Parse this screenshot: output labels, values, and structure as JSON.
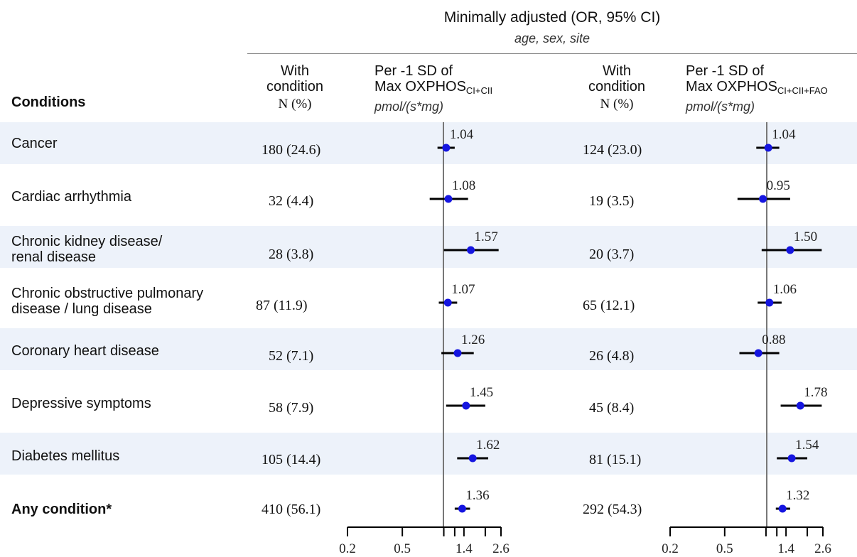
{
  "header": {
    "title": "Minimally adjusted (OR, 95% CI)",
    "subtitle": "age, sex, site",
    "conditions_label": "Conditions",
    "with_condition_line1": "With",
    "with_condition_line2": "condition",
    "n_pct_label": "N (%)",
    "per_sd_line1": "Per -1 SD of",
    "max_oxphos": "Max OXPHOS",
    "sub_left": "CI+CII",
    "sub_right": "CI+CII+FAO",
    "unit": "pmol/(s*mg)"
  },
  "colors": {
    "band": "#edf2fa",
    "point": "#1515e0",
    "ci_line": "#000000",
    "ref_line": "#777777"
  },
  "conditions": [
    {
      "label_lines": [
        "Cancer"
      ],
      "bold": false,
      "n_left": "180 (24.6)",
      "n_right": "124 (23.0)",
      "band": true
    },
    {
      "label_lines": [
        "Cardiac arrhythmia"
      ],
      "bold": false,
      "n_left": "32 (4.4)",
      "n_right": "19 (3.5)",
      "band": false
    },
    {
      "label_lines": [
        "Chronic kidney disease/",
        "renal disease"
      ],
      "bold": false,
      "n_left": "28 (3.8)",
      "n_right": "20 (3.7)",
      "band": true
    },
    {
      "label_lines": [
        "Chronic obstructive pulmonary",
        "disease / lung disease"
      ],
      "bold": false,
      "n_left": "87 (11.9)",
      "n_right": "65 (12.1)",
      "band": false
    },
    {
      "label_lines": [
        "Coronary heart disease"
      ],
      "bold": false,
      "n_left": "52 (7.1)",
      "n_right": "26 (4.8)",
      "band": true
    },
    {
      "label_lines": [
        "Depressive symptoms"
      ],
      "bold": false,
      "n_left": "58 (7.9)",
      "n_right": "45 (8.4)",
      "band": false
    },
    {
      "label_lines": [
        "Diabetes mellitus"
      ],
      "bold": false,
      "n_left": "105 (14.4)",
      "n_right": "81 (15.1)",
      "band": true
    },
    {
      "label_lines": [
        "Any condition*"
      ],
      "bold": true,
      "n_left": "410 (56.1)",
      "n_right": "292 (54.3)",
      "band": false
    }
  ],
  "chart_data": [
    {
      "type": "forest",
      "panel": "Per -1 SD of Max OXPHOS CI+CII",
      "xscale": "log",
      "reference": 1,
      "xticks": [
        0.2,
        0.5,
        1,
        1.2,
        1.4,
        2,
        2.6
      ],
      "xtick_labels": [
        "0.2",
        "0.5",
        "",
        "",
        "1.4",
        "",
        "2.6"
      ],
      "categories": [
        "Cancer",
        "Cardiac arrhythmia",
        "Chronic kidney disease/ renal disease",
        "Chronic obstructive pulmonary disease / lung disease",
        "Coronary heart disease",
        "Depressive symptoms",
        "Diabetes mellitus",
        "Any condition*"
      ],
      "or": [
        1.04,
        1.08,
        1.57,
        1.07,
        1.26,
        1.45,
        1.62,
        1.36
      ],
      "or_labels": [
        "1.04",
        "1.08",
        "1.57",
        "1.07",
        "1.26",
        "1.45",
        "1.62",
        "1.36"
      ],
      "ci_low": [
        0.9,
        0.79,
        1.0,
        0.92,
        0.96,
        1.04,
        1.25,
        1.2
      ],
      "ci_high": [
        1.2,
        1.5,
        2.5,
        1.25,
        1.65,
        2.0,
        2.1,
        1.55
      ]
    },
    {
      "type": "forest",
      "panel": "Per -1 SD of Max OXPHOS CI+CII+FAO",
      "xscale": "log",
      "reference": 1,
      "xticks": [
        0.2,
        0.5,
        1,
        1.2,
        1.4,
        2,
        2.6
      ],
      "xtick_labels": [
        "0.2",
        "0.5",
        "",
        "",
        "1.4",
        "",
        "2.6"
      ],
      "categories": [
        "Cancer",
        "Cardiac arrhythmia",
        "Chronic kidney disease/ renal disease",
        "Chronic obstructive pulmonary disease / lung disease",
        "Coronary heart disease",
        "Depressive symptoms",
        "Diabetes mellitus",
        "Any condition*"
      ],
      "or": [
        1.04,
        0.95,
        1.5,
        1.06,
        0.88,
        1.78,
        1.54,
        1.32
      ],
      "or_labels": [
        "1.04",
        "0.95",
        "1.50",
        "1.06",
        "0.88",
        "1.78",
        "1.54",
        "1.32"
      ],
      "ci_low": [
        0.85,
        0.62,
        0.93,
        0.87,
        0.64,
        1.28,
        1.2,
        1.18
      ],
      "ci_high": [
        1.25,
        1.5,
        2.55,
        1.3,
        1.25,
        2.55,
        2.0,
        1.5
      ]
    }
  ]
}
